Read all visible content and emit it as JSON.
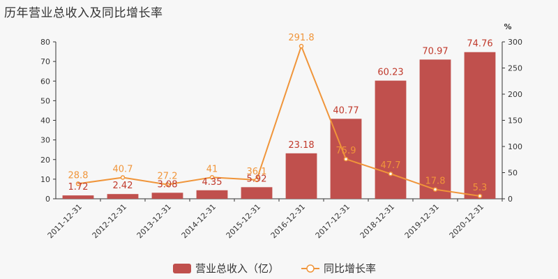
{
  "title": "历年营业总收入及同比增长率",
  "chart_data": {
    "type": "bar",
    "categories": [
      "2011-12-31",
      "2012-12-31",
      "2013-12-31",
      "2014-12-31",
      "2015-12-31",
      "2016-12-31",
      "2017-12-31",
      "2018-12-31",
      "2019-12-31",
      "2020-12-31"
    ],
    "series": [
      {
        "name": "营业总收入（亿）",
        "type": "bar",
        "axis": "left",
        "color": "#c0504d",
        "values": [
          1.72,
          2.42,
          3.08,
          4.35,
          5.92,
          23.18,
          40.77,
          60.23,
          70.97,
          74.76
        ],
        "labels": [
          "1.72",
          "2.42",
          "3.08",
          "4.35",
          "5.92",
          "23.18",
          "40.77",
          "60.23",
          "70.97",
          "74.76"
        ]
      },
      {
        "name": "同比增长率",
        "type": "line",
        "axis": "right",
        "color": "#f0953a",
        "values": [
          28.8,
          40.7,
          27.2,
          41,
          36.1,
          291.8,
          75.9,
          47.7,
          17.8,
          5.3
        ],
        "labels": [
          "28.8",
          "40.7",
          "27.2",
          "41",
          "36.1",
          "291.8",
          "75.9",
          "47.7",
          "17.8",
          "5.3"
        ]
      }
    ],
    "y_left": {
      "lim": [
        0,
        80
      ],
      "ticks": [
        "0",
        "10",
        "20",
        "30",
        "40",
        "50",
        "60",
        "70",
        "80"
      ]
    },
    "y_right": {
      "lim": [
        0,
        300
      ],
      "ticks": [
        "0",
        "50",
        "100",
        "150",
        "200",
        "250",
        "300"
      ],
      "unit": "%"
    },
    "grid": false,
    "legend": "bottom"
  }
}
